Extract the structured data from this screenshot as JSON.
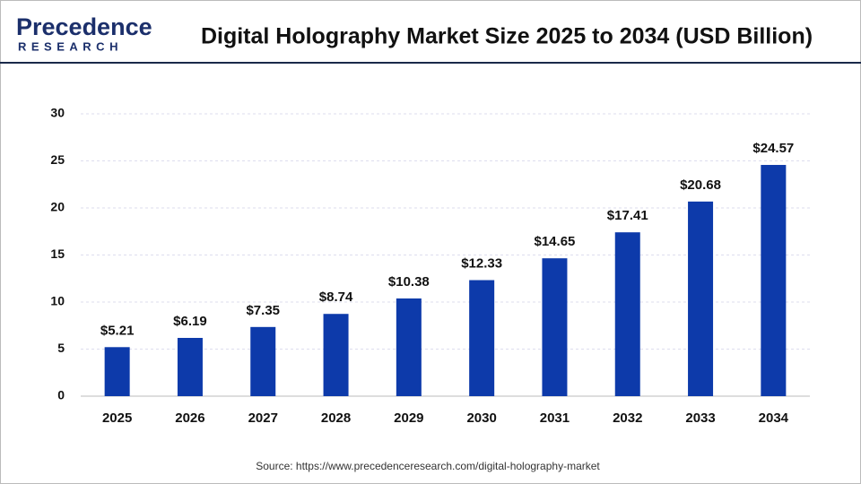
{
  "logo": {
    "name": "Precedence",
    "subname": "RESEARCH"
  },
  "chart_data": {
    "type": "bar",
    "title": "Digital Holography Market Size 2025 to 2034 (USD Billion)",
    "categories": [
      "2025",
      "2026",
      "2027",
      "2028",
      "2029",
      "2030",
      "2031",
      "2032",
      "2033",
      "2034"
    ],
    "values": [
      5.21,
      6.19,
      7.35,
      8.74,
      10.38,
      12.33,
      14.65,
      17.41,
      20.68,
      24.57
    ],
    "value_labels": [
      "$5.21",
      "$6.19",
      "$7.35",
      "$8.74",
      "$10.38",
      "$12.33",
      "$14.65",
      "$17.41",
      "$20.68",
      "$24.57"
    ],
    "color": "#0d3aaa",
    "ylim": [
      0,
      30
    ],
    "yticks": [
      0,
      5,
      10,
      15,
      20,
      25,
      30
    ],
    "grid": true,
    "source": "Source: https://www.precedenceresearch.com/digital-holography-market"
  }
}
